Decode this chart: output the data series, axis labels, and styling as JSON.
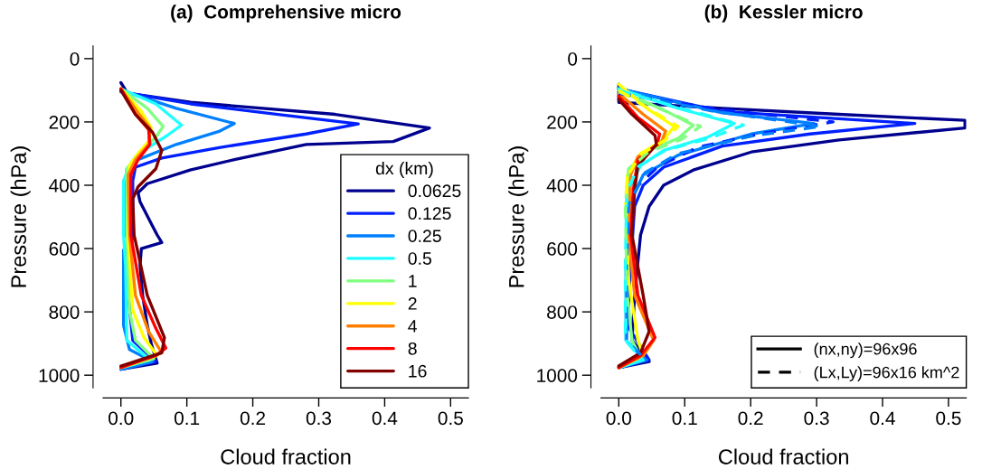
{
  "chart_data": [
    {
      "type": "line",
      "title": "(a)  Comprehensive micro",
      "xlabel": "Cloud fraction",
      "ylabel": "Pressure (hPa)",
      "xlim": [
        -0.027,
        0.527
      ],
      "ylim": [
        1040,
        -40
      ],
      "xticks": [
        {
          "value": 0,
          "label": "0.0"
        },
        {
          "value": 0.1,
          "label": "0.1"
        },
        {
          "value": 0.2,
          "label": "0.2"
        },
        {
          "value": 0.3,
          "label": "0.3"
        },
        {
          "value": 0.4,
          "label": "0.4"
        },
        {
          "value": 0.5,
          "label": "0.5"
        }
      ],
      "yticks": [
        0,
        200,
        400,
        600,
        800,
        1000
      ],
      "legend": "bottom right",
      "legend_title": "dx (km)",
      "line_style": "solid",
      "marker": "none",
      "series": [
        {
          "name": "0.0625",
          "color": "#00008f",
          "x": [
            0,
            0.01,
            0.106,
            0.325,
            0.468,
            0.413,
            0.281,
            0.172,
            0.105,
            0.04,
            0.026,
            0.029,
            0.048,
            0.055,
            0.062,
            0.031,
            0.029,
            0.033,
            0.04,
            0.046,
            0.055,
            0
          ],
          "values": [
            76,
            109,
            138,
            176,
            219,
            262,
            271,
            319,
            352,
            395,
            424,
            452,
            529,
            557,
            581,
            600,
            652,
            748,
            843,
            900,
            962,
            981
          ]
        },
        {
          "name": "0.125",
          "color": "#0020ff",
          "x": [
            0,
            0.106,
            0.238,
            0.36,
            0.281,
            0.149,
            0.062,
            0.022,
            0.018,
            0.018,
            0.016,
            0.009,
            0.011,
            0.018,
            0.053,
            0
          ],
          "values": [
            105,
            143,
            176,
            206,
            238,
            281,
            314,
            343,
            386,
            557,
            586,
            605,
            748,
            890,
            957,
            981
          ]
        },
        {
          "name": "0.25",
          "color": "#0080ff",
          "x": [
            0,
            0.084,
            0.172,
            0.15,
            0.084,
            0.026,
            0.009,
            0.007,
            0.007,
            0.013,
            0.004,
            0.004,
            0.013,
            0.048,
            0
          ],
          "values": [
            100,
            157,
            205,
            229,
            271,
            319,
            348,
            462,
            557,
            581,
            605,
            843,
            919,
            957,
            981
          ]
        },
        {
          "name": "0.5",
          "color": "#20ffff",
          "x": [
            0,
            0.053,
            0.092,
            0.07,
            0.035,
            0.013,
            0.004,
            0.004,
            0.007,
            0.009,
            0.044,
            0
          ],
          "values": [
            95,
            143,
            210,
            243,
            290,
            338,
            386,
            557,
            652,
            890,
            952,
            976
          ]
        },
        {
          "name": "1",
          "color": "#80ff80",
          "x": [
            0,
            0.04,
            0.064,
            0.053,
            0.022,
            0.009,
            0.009,
            0.013,
            0.022,
            0.05,
            0
          ],
          "values": [
            95,
            157,
            214,
            248,
            310,
            348,
            557,
            795,
            890,
            948,
            976
          ]
        },
        {
          "name": "2",
          "color": "#ffff00",
          "x": [
            0,
            0.031,
            0.046,
            0.042,
            0.026,
            0.013,
            0.011,
            0.018,
            0.035,
            0.055,
            0
          ],
          "values": [
            95,
            167,
            219,
            262,
            300,
            338,
            557,
            795,
            881,
            938,
            976
          ]
        },
        {
          "name": "4",
          "color": "#ff8000",
          "x": [
            0,
            0.026,
            0.044,
            0.042,
            0.022,
            0.011,
            0.013,
            0.022,
            0.042,
            0.062,
            0
          ],
          "values": [
            95,
            171,
            219,
            271,
            319,
            367,
            557,
            748,
            862,
            929,
            976
          ]
        },
        {
          "name": "8",
          "color": "#ff0000",
          "x": [
            0,
            0.022,
            0.042,
            0.044,
            0.026,
            0.015,
            0.015,
            0.031,
            0.053,
            0.068,
            0.053,
            0
          ],
          "values": [
            95,
            176,
            224,
            271,
            319,
            367,
            557,
            748,
            852,
            914,
            938,
            976
          ]
        },
        {
          "name": "16",
          "color": "#800000",
          "x": [
            0,
            0.022,
            0.048,
            0.062,
            0.053,
            0.026,
            0.018,
            0.02,
            0.04,
            0.066,
            0.062,
            0
          ],
          "values": [
            100,
            176,
            233,
            290,
            348,
            405,
            443,
            557,
            748,
            881,
            929,
            971
          ]
        }
      ]
    },
    {
      "type": "line",
      "title": "(b)  Kessler micro",
      "xlabel": "Cloud fraction",
      "ylabel": "Pressure (hPa)",
      "xlim": [
        -0.027,
        0.527
      ],
      "ylim": [
        1040,
        -40
      ],
      "xticks": [
        {
          "value": 0,
          "label": "0.0"
        },
        {
          "value": 0.1,
          "label": "0.1"
        },
        {
          "value": 0.2,
          "label": "0.2"
        },
        {
          "value": 0.3,
          "label": "0.3"
        },
        {
          "value": 0.4,
          "label": "0.4"
        },
        {
          "value": 0.5,
          "label": "0.5"
        }
      ],
      "yticks": [
        0,
        200,
        400,
        600,
        800,
        1000
      ],
      "legend": "bottom right",
      "marker": "none",
      "annotations": [
        "(nx,ny)=96x96",
        "(Lx,Ly)=96x16 km^2"
      ],
      "series": [
        {
          "color": "#00008f",
          "line_style": "solid",
          "x": [
            0,
            0,
            0.157,
            0.334,
            0.525,
            0.525,
            0.334,
            0.201,
            0.113,
            0.068,
            0.046,
            0.033,
            0.024,
            0.02,
            0.046,
            0
          ],
          "values": [
            81,
            138,
            157,
            176,
            195,
            219,
            257,
            295,
            352,
            400,
            467,
            557,
            748,
            890,
            957,
            976
          ]
        },
        {
          "color": "#0020ff",
          "line_style": "solid",
          "x": [
            0,
            0.157,
            0.449,
            0.29,
            0.157,
            0.068,
            0.037,
            0.024,
            0.018,
            0.013,
            0.046,
            0
          ],
          "values": [
            95,
            167,
            205,
            238,
            276,
            343,
            400,
            467,
            652,
            843,
            952,
            976
          ]
        },
        {
          "color": "#0080ff",
          "line_style": "solid",
          "x": [
            0,
            0.157,
            0.296,
            0.201,
            0.09,
            0.037,
            0.015,
            0.011,
            0.011,
            0.042,
            0
          ],
          "values": [
            95,
            171,
            205,
            238,
            305,
            367,
            467,
            652,
            890,
            952,
            976
          ]
        },
        {
          "color": "#20ffff",
          "line_style": "solid",
          "x": [
            0,
            0.09,
            0.175,
            0.135,
            0.068,
            0.033,
            0.015,
            0.011,
            0.011,
            0.037,
            0
          ],
          "values": [
            95,
            157,
            205,
            248,
            290,
            338,
            414,
            652,
            890,
            952,
            976
          ]
        },
        {
          "color": "#80ff80",
          "line_style": "solid",
          "x": [
            0,
            0.068,
            0.113,
            0.09,
            0.046,
            0.015,
            0.011,
            0.013,
            0.02,
            0.033,
            0
          ],
          "values": [
            100,
            162,
            210,
            252,
            290,
            348,
            467,
            748,
            890,
            943,
            976
          ]
        },
        {
          "color": "#ffff00",
          "line_style": "solid",
          "x": [
            0,
            0.046,
            0.084,
            0.068,
            0.033,
            0.013,
            0.011,
            0.015,
            0.029,
            0.037,
            0
          ],
          "values": [
            81,
            162,
            214,
            257,
            300,
            367,
            467,
            700,
            890,
            938,
            976
          ]
        },
        {
          "color": "#ff8000",
          "line_style": "solid",
          "x": [
            0,
            0.037,
            0.071,
            0.064,
            0.029,
            0.018,
            0.015,
            0.024,
            0.053,
            0.037,
            0
          ],
          "values": [
            110,
            176,
            229,
            267,
            310,
            367,
            557,
            748,
            890,
            938,
            976
          ]
        },
        {
          "color": "#ff0000",
          "line_style": "solid",
          "x": [
            0,
            0.029,
            0.062,
            0.058,
            0.029,
            0.022,
            0.018,
            0.029,
            0.055,
            0.033,
            0
          ],
          "values": [
            119,
            186,
            238,
            271,
            319,
            414,
            557,
            748,
            881,
            938,
            976
          ]
        },
        {
          "color": "#800000",
          "line_style": "solid",
          "x": [
            0,
            0.02,
            0.055,
            0.057,
            0.029,
            0.024,
            0.02,
            0.037,
            0.046,
            0.033,
            0
          ],
          "values": [
            129,
            176,
            243,
            271,
            338,
            414,
            557,
            748,
            862,
            929,
            971
          ]
        },
        {
          "color": "#0020ff",
          "line_style": "dashed",
          "x": [
            0,
            0.15,
            0.325,
            0.22,
            0.12,
            0.06,
            0.03
          ],
          "values": [
            110,
            160,
            200,
            235,
            280,
            340,
            400
          ]
        },
        {
          "color": "#0080ff",
          "line_style": "dashed",
          "x": [
            0,
            0.14,
            0.307,
            0.2,
            0.09,
            0.04,
            0.015,
            0.012,
            0.012,
            0.04
          ],
          "values": [
            105,
            165,
            214,
            245,
            300,
            360,
            460,
            650,
            890,
            950
          ]
        },
        {
          "color": "#20ffff",
          "line_style": "dashed",
          "x": [
            0,
            0.1,
            0.189,
            0.14,
            0.07,
            0.03,
            0.012,
            0.01,
            0.01,
            0.035
          ],
          "values": [
            100,
            160,
            210,
            250,
            290,
            340,
            420,
            650,
            890,
            950
          ]
        },
        {
          "color": "#80ff80",
          "line_style": "dashed",
          "x": [
            0,
            0.07,
            0.124,
            0.095,
            0.045,
            0.015,
            0.01,
            0.012
          ],
          "values": [
            105,
            165,
            214,
            255,
            295,
            350,
            460,
            700
          ]
        },
        {
          "color": "#ffff00",
          "line_style": "dashed",
          "x": [
            0,
            0.05,
            0.09,
            0.07,
            0.035,
            0.013,
            0.01
          ],
          "values": [
            100,
            165,
            214,
            258,
            300,
            370,
            460
          ]
        }
      ]
    }
  ]
}
